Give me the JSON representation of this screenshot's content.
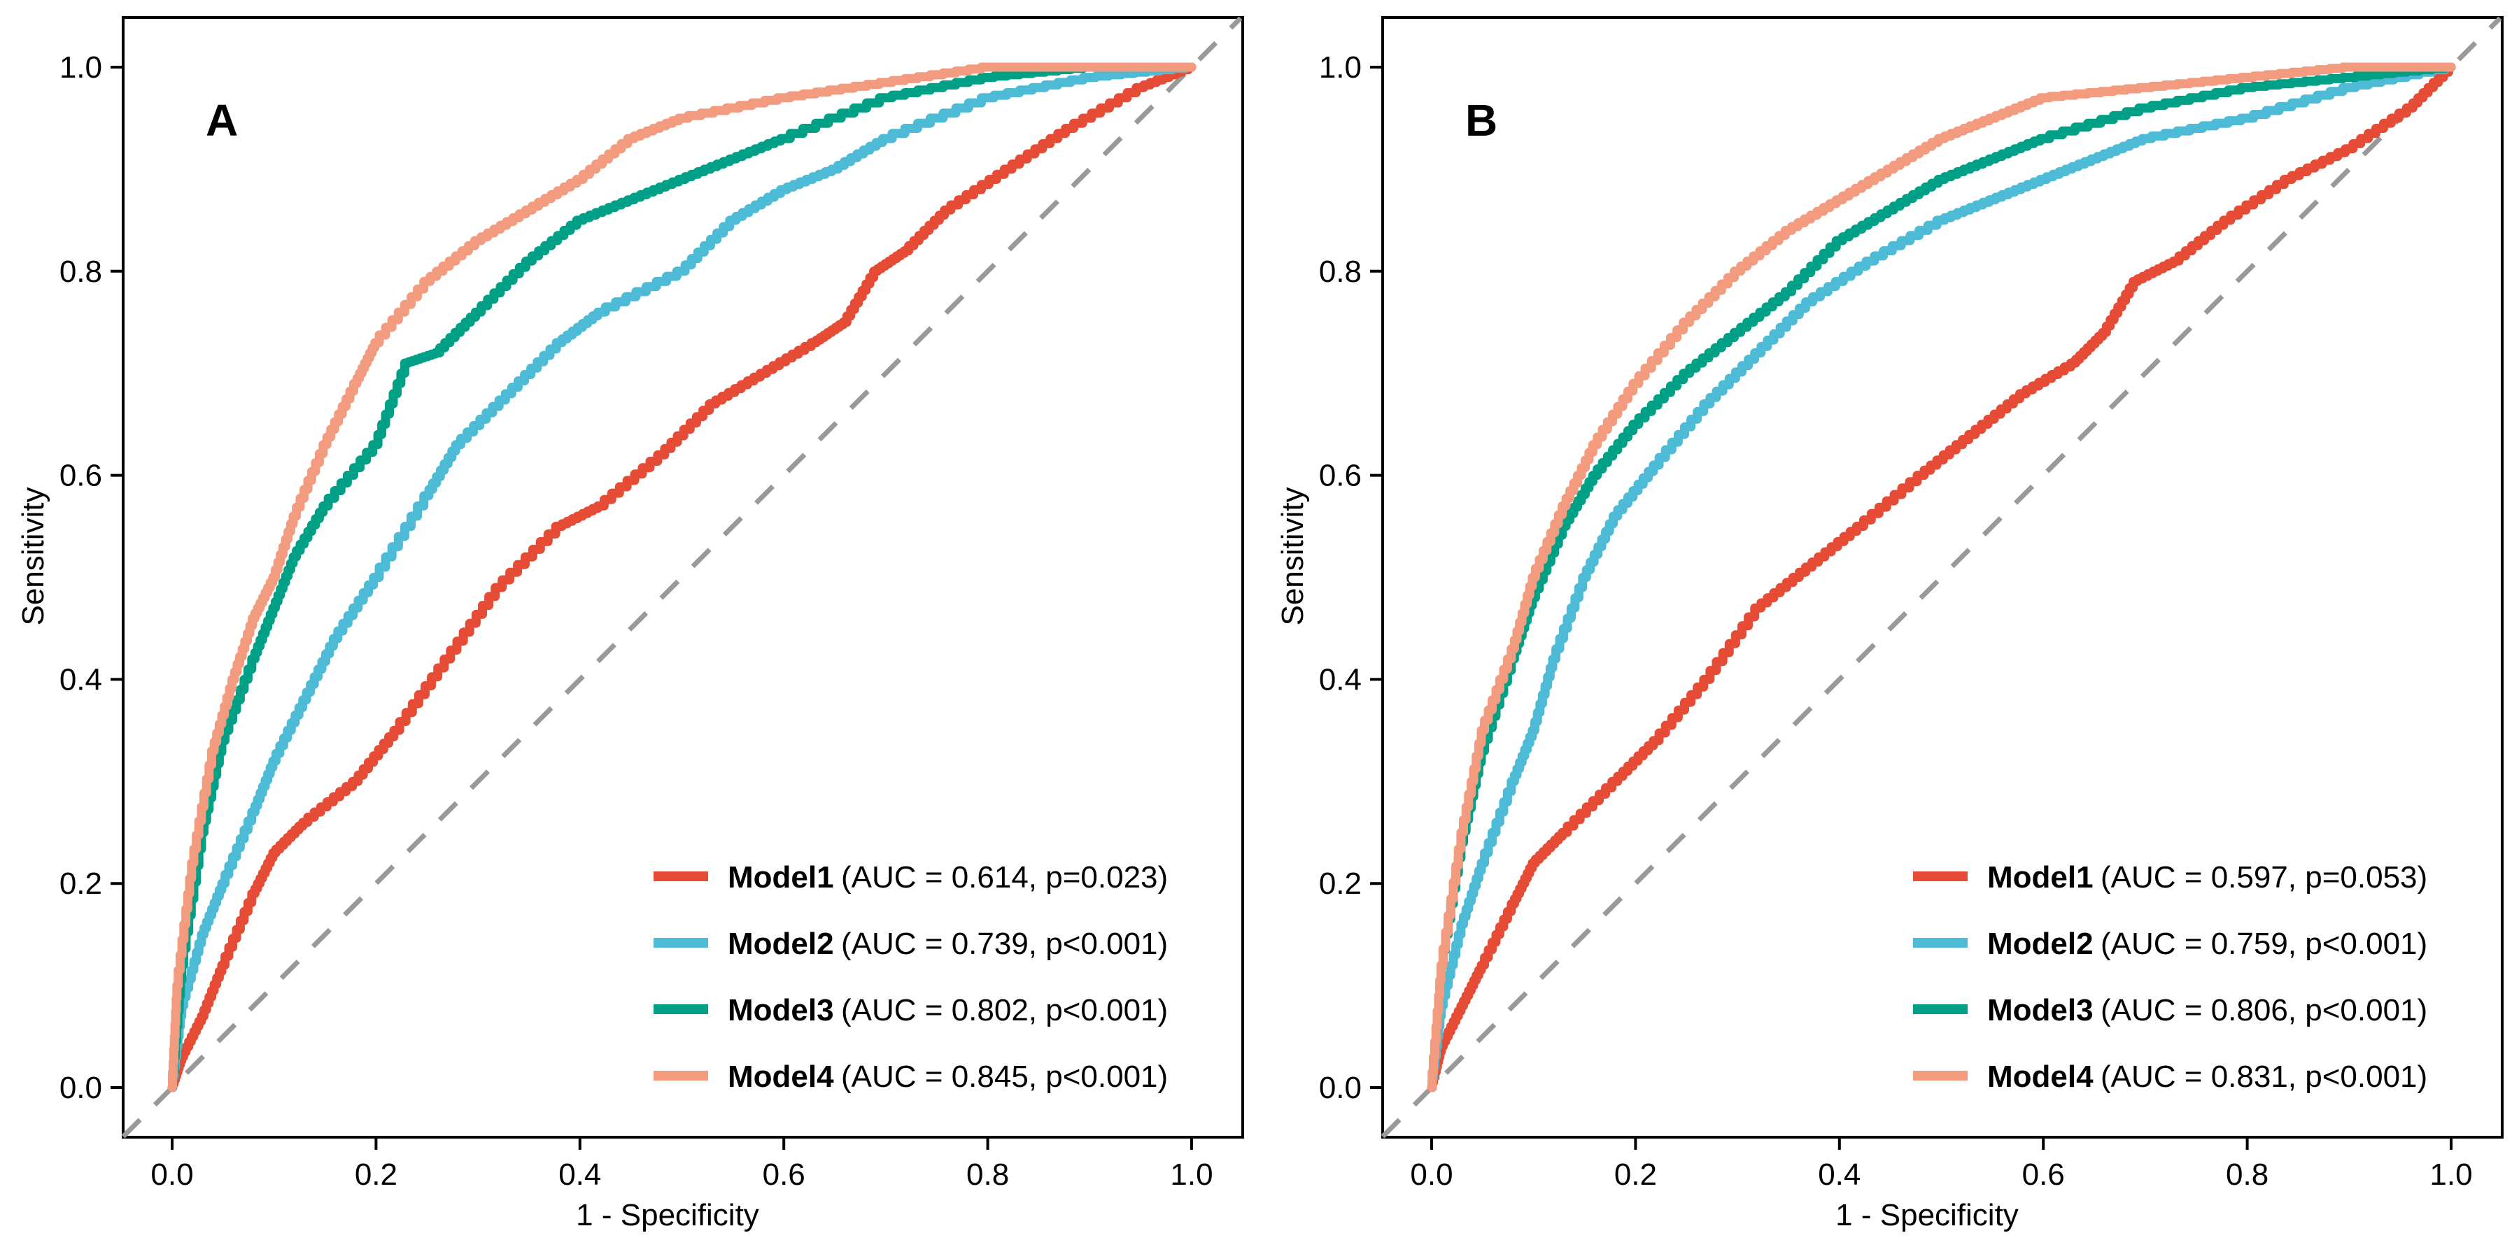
{
  "figure": {
    "colors": {
      "Model1": "#E64B35",
      "Model2": "#4DBBD5",
      "Model3": "#00A087",
      "Model4": "#F39B7F",
      "reference": "#999999",
      "axis": "#000000"
    }
  },
  "chart_data": [
    {
      "type": "line",
      "panel": "A",
      "title": "",
      "xlabel": "1 - Specificity",
      "ylabel": "Sensitivity",
      "xlim": [
        -0.05,
        1.05
      ],
      "ylim": [
        -0.05,
        1.05
      ],
      "xticks": [
        "0.0",
        "0.2",
        "0.4",
        "0.6",
        "0.8",
        "1.0"
      ],
      "yticks": [
        "0.0",
        "0.2",
        "0.4",
        "0.6",
        "0.8",
        "1.0"
      ],
      "grid": false,
      "legend_position": "bottom-right",
      "reference_line": {
        "from": [
          0,
          0
        ],
        "to": [
          1,
          1
        ],
        "style": "dashed"
      },
      "series": [
        {
          "name": "Model1",
          "legend_stat": "(AUC = 0.614, p=0.023)",
          "auc": 0.614,
          "p": "0.023",
          "x": [
            0,
            0.01,
            0.03,
            0.05,
            0.08,
            0.1,
            0.13,
            0.18,
            0.22,
            0.27,
            0.32,
            0.38,
            0.42,
            0.48,
            0.53,
            0.58,
            0.63,
            0.66,
            0.69,
            0.72,
            0.76,
            0.82,
            0.88,
            0.95,
            1
          ],
          "y": [
            0,
            0.03,
            0.07,
            0.12,
            0.19,
            0.23,
            0.26,
            0.3,
            0.35,
            0.42,
            0.49,
            0.55,
            0.57,
            0.62,
            0.67,
            0.7,
            0.73,
            0.75,
            0.8,
            0.82,
            0.86,
            0.9,
            0.94,
            0.98,
            1
          ]
        },
        {
          "name": "Model2",
          "legend_stat": "(AUC = 0.739, p<0.001)",
          "auc": 0.739,
          "p": "<0.001",
          "x": [
            0,
            0.01,
            0.03,
            0.05,
            0.08,
            0.1,
            0.13,
            0.16,
            0.2,
            0.25,
            0.28,
            0.33,
            0.38,
            0.42,
            0.5,
            0.55,
            0.6,
            0.65,
            0.7,
            0.8,
            0.9,
            1
          ],
          "y": [
            0,
            0.08,
            0.15,
            0.2,
            0.27,
            0.32,
            0.38,
            0.44,
            0.5,
            0.58,
            0.63,
            0.68,
            0.73,
            0.76,
            0.8,
            0.85,
            0.88,
            0.9,
            0.93,
            0.97,
            0.99,
            1
          ]
        },
        {
          "name": "Model3",
          "legend_stat": "(AUC = 0.802, p<0.001)",
          "auc": 0.802,
          "p": "<0.001",
          "x": [
            0,
            0.01,
            0.03,
            0.05,
            0.08,
            0.1,
            0.12,
            0.15,
            0.2,
            0.23,
            0.26,
            0.3,
            0.35,
            0.4,
            0.45,
            0.5,
            0.55,
            0.6,
            0.7,
            0.8,
            0.9,
            1
          ],
          "y": [
            0,
            0.12,
            0.25,
            0.34,
            0.42,
            0.47,
            0.52,
            0.57,
            0.63,
            0.71,
            0.72,
            0.76,
            0.81,
            0.85,
            0.87,
            0.89,
            0.91,
            0.93,
            0.97,
            0.99,
            1,
            1
          ]
        },
        {
          "name": "Model4",
          "legend_stat": "(AUC = 0.845, p<0.001)",
          "auc": 0.845,
          "p": "<0.001",
          "x": [
            0,
            0.005,
            0.02,
            0.04,
            0.06,
            0.08,
            0.1,
            0.12,
            0.15,
            0.18,
            0.2,
            0.25,
            0.3,
            0.35,
            0.4,
            0.45,
            0.5,
            0.6,
            0.7,
            0.8,
            1
          ],
          "y": [
            0,
            0.1,
            0.22,
            0.33,
            0.4,
            0.46,
            0.5,
            0.56,
            0.63,
            0.69,
            0.73,
            0.79,
            0.83,
            0.86,
            0.89,
            0.93,
            0.95,
            0.97,
            0.985,
            1,
            1
          ]
        }
      ]
    },
    {
      "type": "line",
      "panel": "B",
      "title": "",
      "xlabel": "1 - Specificity",
      "ylabel": "Sensitivity",
      "xlim": [
        -0.05,
        1.05
      ],
      "ylim": [
        -0.05,
        1.05
      ],
      "xticks": [
        "0.0",
        "0.2",
        "0.4",
        "0.6",
        "0.8",
        "1.0"
      ],
      "yticks": [
        "0.0",
        "0.2",
        "0.4",
        "0.6",
        "0.8",
        "1.0"
      ],
      "grid": false,
      "legend_position": "bottom-right",
      "reference_line": {
        "from": [
          0,
          0
        ],
        "to": [
          1,
          1
        ],
        "style": "dashed"
      },
      "series": [
        {
          "name": "Model1",
          "legend_stat": "(AUC = 0.597, p=0.053)",
          "auc": 0.597,
          "p": "0.053",
          "x": [
            0,
            0.01,
            0.03,
            0.05,
            0.08,
            0.1,
            0.13,
            0.18,
            0.22,
            0.27,
            0.32,
            0.37,
            0.42,
            0.48,
            0.53,
            0.58,
            0.63,
            0.66,
            0.69,
            0.73,
            0.78,
            0.84,
            0.9,
            0.96,
            1
          ],
          "y": [
            0,
            0.04,
            0.08,
            0.12,
            0.18,
            0.22,
            0.25,
            0.3,
            0.34,
            0.4,
            0.47,
            0.51,
            0.55,
            0.6,
            0.64,
            0.68,
            0.71,
            0.74,
            0.79,
            0.81,
            0.85,
            0.89,
            0.92,
            0.96,
            1
          ]
        },
        {
          "name": "Model2",
          "legend_stat": "(AUC = 0.759, p<0.001)",
          "auc": 0.759,
          "p": "<0.001",
          "x": [
            0,
            0.01,
            0.03,
            0.05,
            0.08,
            0.1,
            0.12,
            0.15,
            0.18,
            0.22,
            0.27,
            0.32,
            0.37,
            0.43,
            0.5,
            0.55,
            0.6,
            0.65,
            0.7,
            0.8,
            0.9,
            1
          ],
          "y": [
            0,
            0.08,
            0.16,
            0.22,
            0.3,
            0.35,
            0.42,
            0.5,
            0.56,
            0.61,
            0.67,
            0.72,
            0.77,
            0.81,
            0.85,
            0.87,
            0.89,
            0.91,
            0.93,
            0.95,
            0.98,
            1
          ]
        },
        {
          "name": "Model3",
          "legend_stat": "(AUC = 0.806, p<0.001)",
          "auc": 0.806,
          "p": "<0.001",
          "x": [
            0,
            0.01,
            0.03,
            0.05,
            0.08,
            0.1,
            0.13,
            0.16,
            0.2,
            0.25,
            0.3,
            0.35,
            0.4,
            0.45,
            0.5,
            0.55,
            0.6,
            0.7,
            0.8,
            0.9,
            1
          ],
          "y": [
            0,
            0.12,
            0.24,
            0.33,
            0.42,
            0.48,
            0.55,
            0.6,
            0.65,
            0.7,
            0.74,
            0.78,
            0.83,
            0.86,
            0.89,
            0.91,
            0.93,
            0.96,
            0.98,
            0.99,
            1
          ]
        },
        {
          "name": "Model4",
          "legend_stat": "(AUC = 0.831, p<0.001)",
          "auc": 0.831,
          "p": "<0.001",
          "x": [
            0,
            0.01,
            0.03,
            0.05,
            0.08,
            0.1,
            0.13,
            0.16,
            0.2,
            0.25,
            0.3,
            0.35,
            0.4,
            0.45,
            0.5,
            0.55,
            0.6,
            0.7,
            0.8,
            0.9,
            1
          ],
          "y": [
            0,
            0.12,
            0.25,
            0.35,
            0.43,
            0.5,
            0.57,
            0.63,
            0.69,
            0.75,
            0.8,
            0.84,
            0.87,
            0.9,
            0.93,
            0.95,
            0.97,
            0.98,
            0.99,
            1,
            1
          ]
        }
      ]
    }
  ]
}
